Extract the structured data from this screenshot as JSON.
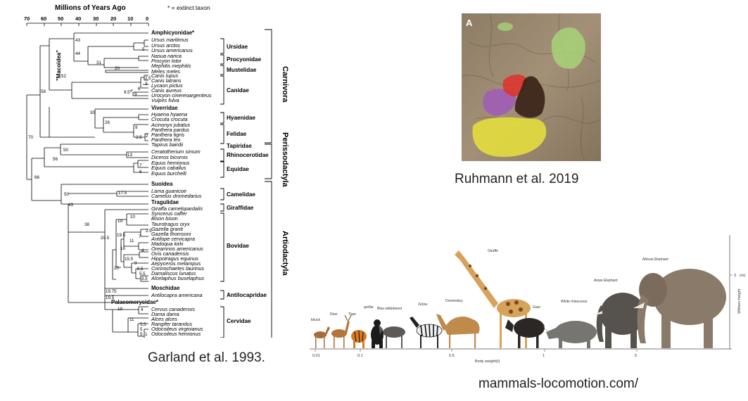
{
  "tree": {
    "axis_title": "Millions of Years Ago",
    "legend": "* = extinct taxon",
    "ticks": [
      "70",
      "60",
      "50",
      "40",
      "30",
      "20",
      "10",
      "0"
    ],
    "taxa": [
      {
        "name": "Amphicyonidae*",
        "bold": true
      },
      {
        "name": "Ursus maritimus"
      },
      {
        "name": "Ursus arctos"
      },
      {
        "name": "Ursus americanus"
      },
      {
        "name": "Nasua narica"
      },
      {
        "name": "Procyon lotor"
      },
      {
        "name": "Mephitis mephitis"
      },
      {
        "name": "Meles meles"
      },
      {
        "name": "Canis lupus"
      },
      {
        "name": "Canis latrans"
      },
      {
        "name": "Lycaon pictus"
      },
      {
        "name": "Canis aureus"
      },
      {
        "name": "Urocyon cinereoargenteus"
      },
      {
        "name": "Vulpes fulva"
      },
      {
        "name": "Viverridae",
        "bold": true
      },
      {
        "name": "Hyaena hyaena"
      },
      {
        "name": "Crocuta crocuta"
      },
      {
        "name": "Acinonyx jubatus"
      },
      {
        "name": "Panthera pardus"
      },
      {
        "name": "Panthera tigris"
      },
      {
        "name": "Panthera leo"
      },
      {
        "name": "Tapirus bairdii"
      },
      {
        "name": "Ceratotherium simum"
      },
      {
        "name": "Diceros bicornis"
      },
      {
        "name": "Equus hemionus"
      },
      {
        "name": "Equus caballus"
      },
      {
        "name": "Equus burchelli"
      },
      {
        "name": "Suoidea",
        "bold": true
      },
      {
        "name": "Lama guanicoe"
      },
      {
        "name": "Camelus dromedarius"
      },
      {
        "name": "Tragulidae",
        "bold": true
      },
      {
        "name": "Giraffa camelopardalis"
      },
      {
        "name": "Syncerus caffer"
      },
      {
        "name": "Bison bison"
      },
      {
        "name": "Taurotragus oryx"
      },
      {
        "name": "Gazella granti"
      },
      {
        "name": "Gazella thomsoni"
      },
      {
        "name": "Antilope cervicapra"
      },
      {
        "name": "Madoqua kirki"
      },
      {
        "name": "Oreamnos americanus"
      },
      {
        "name": "Ovis canadensis"
      },
      {
        "name": "Hippotragus equinus"
      },
      {
        "name": "Aepyceros melampus"
      },
      {
        "name": "Connochaetes taurinus"
      },
      {
        "name": "Damaliscus lunatus"
      },
      {
        "name": "Alcelaphus buselaphus"
      },
      {
        "name": "Moschidae",
        "bold": true
      },
      {
        "name": "Antilocapra americana"
      },
      {
        "name": "Palaeomerycidae*",
        "bold": true
      },
      {
        "name": "Cervus canadensis"
      },
      {
        "name": "Dama dama"
      },
      {
        "name": "Alces alces"
      },
      {
        "name": "Rangifer tarandus"
      },
      {
        "name": "Odocoileus virginianus"
      },
      {
        "name": "Odocoileus hemionus"
      }
    ],
    "node_labels": [
      "43",
      "44",
      "52",
      "31",
      "20",
      "58",
      "9.5",
      "2.5",
      "3",
      "5",
      "6",
      "9",
      "30",
      "26",
      "9",
      "2.5",
      "2",
      "70",
      "50",
      "13",
      "56",
      "7",
      "6",
      "66",
      "50",
      "17.5",
      "43",
      "38",
      "19",
      "10",
      "2.5",
      "7",
      "19.5",
      "20.5",
      "11",
      "16",
      "4",
      "15.5",
      "9",
      "5.5",
      "5.5",
      "3.5",
      "20",
      "19.75",
      "19.5",
      "19",
      "4",
      "11",
      "5.5",
      "5",
      "1",
      "5"
    ],
    "families": [
      "Ursidae",
      "Procyonidae",
      "Mustelidae",
      "Canidae",
      "Hyaenidae",
      "Felidae",
      "Tapiridae",
      "Rhinocerotidae",
      "Equidae",
      "Camelidae",
      "Giraffidae",
      "Bovidae",
      "Antilocapridae",
      "Cervidae"
    ],
    "orders": [
      "Carnivora",
      "Perissodactyla",
      "Artiodactyla"
    ],
    "clade_label": "\"Macoidea\""
  },
  "captions": {
    "garland": "Garland et al. 1993.",
    "ruhmann": "Ruhmann et al. 2019",
    "locomotion": "mammals-locomotion.com/"
  },
  "map": {
    "panel_label": "A",
    "colors": {
      "green": "#a8d878",
      "yellow": "#e7e23a",
      "purple": "#a05ab8",
      "red": "#e0302a",
      "dark": "#3a2418",
      "terrain": "#9a8a72"
    }
  },
  "animals_chart": {
    "x_ticks": [
      "0.01",
      "0.1",
      "0.5",
      "1",
      "5"
    ],
    "x_label": "Body weight(t)",
    "y_label": "Withers height",
    "y_unit": "(m)",
    "y_tick": "3",
    "animals": [
      "kbuck",
      "Deer",
      "Tiger",
      "gorilla",
      "Blue wildebeest",
      "Zebra",
      "Dromedary",
      "Giraffe",
      "Gaur",
      "White rhinoceros",
      "Asian Elephant",
      "African Elephant"
    ]
  }
}
